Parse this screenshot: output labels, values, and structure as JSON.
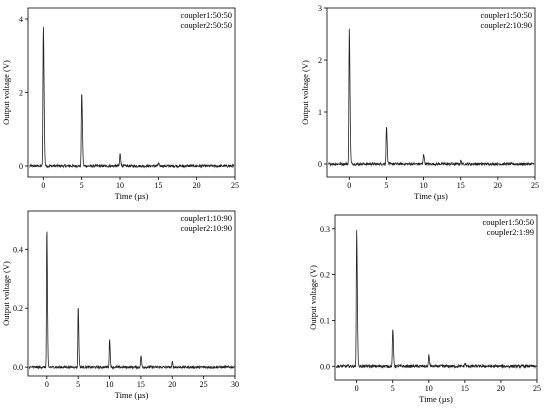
{
  "chart_data": [
    {
      "type": "line",
      "legend": [
        "coupler1:50:50",
        "coupler2:50:50"
      ],
      "legend_position": "top-right",
      "xlabel": "Time (µs)",
      "ylabel": "Output voltage (V)",
      "xlim": [
        -2,
        25
      ],
      "ylim": [
        -0.3,
        4.3
      ],
      "xticks": [
        0,
        5,
        10,
        15,
        20,
        25
      ],
      "yticks": [
        0,
        2,
        4
      ],
      "pulses": [
        {
          "x": 0,
          "y": 3.85
        },
        {
          "x": 5,
          "y": 2.02
        },
        {
          "x": 10,
          "y": 0.33
        },
        {
          "x": 15,
          "y": 0.06
        }
      ],
      "noise": 0.035,
      "grid": false
    },
    {
      "type": "line",
      "legend": [
        "coupler1:50:50",
        "coupler2:10:90"
      ],
      "legend_position": "top-right",
      "xlabel": "Time (µs)",
      "ylabel": "Output voltage (V)",
      "xlim": [
        -3,
        25
      ],
      "ylim": [
        -0.25,
        3
      ],
      "xticks": [
        0,
        5,
        10,
        15,
        20,
        25
      ],
      "yticks": [
        0,
        1,
        2,
        3
      ],
      "pulses": [
        {
          "x": 0,
          "y": 2.62
        },
        {
          "x": 5,
          "y": 0.73
        },
        {
          "x": 10,
          "y": 0.2
        },
        {
          "x": 15,
          "y": 0.06
        }
      ],
      "noise": 0.025,
      "grid": false
    },
    {
      "type": "line",
      "legend": [
        "coupler1:10:90",
        "coupler2:10:90"
      ],
      "legend_position": "top-right",
      "xlabel": "Time (µs)",
      "ylabel": "Output voltage (V)",
      "xlim": [
        -3,
        30
      ],
      "ylim": [
        -0.03,
        0.53
      ],
      "xticks": [
        0,
        5,
        10,
        15,
        20,
        25,
        30
      ],
      "yticks": [
        0.0,
        0.2,
        0.4
      ],
      "ytick_labels": [
        "0.0",
        "0.2",
        "0.4"
      ],
      "pulses": [
        {
          "x": 0,
          "y": 0.48
        },
        {
          "x": 5,
          "y": 0.21
        },
        {
          "x": 10,
          "y": 0.1
        },
        {
          "x": 15,
          "y": 0.04
        },
        {
          "x": 20,
          "y": 0.017
        }
      ],
      "noise": 0.004,
      "grid": false
    },
    {
      "type": "line",
      "legend": [
        "coupler1:50:50",
        "coupler2:1:99"
      ],
      "legend_position": "top-right",
      "xlabel": "Time (µs)",
      "ylabel": "Output voltage (V)",
      "xlim": [
        -3,
        25
      ],
      "ylim": [
        -0.03,
        0.33
      ],
      "xticks": [
        0,
        5,
        10,
        15,
        20,
        25
      ],
      "yticks": [
        0.0,
        0.1,
        0.2,
        0.3
      ],
      "ytick_labels": [
        "0.0",
        "0.1",
        "0.2",
        "0.3"
      ],
      "pulses": [
        {
          "x": 0,
          "y": 0.295
        },
        {
          "x": 5,
          "y": 0.082
        },
        {
          "x": 10,
          "y": 0.024
        },
        {
          "x": 15,
          "y": 0.007
        }
      ],
      "noise": 0.003,
      "grid": false
    }
  ]
}
